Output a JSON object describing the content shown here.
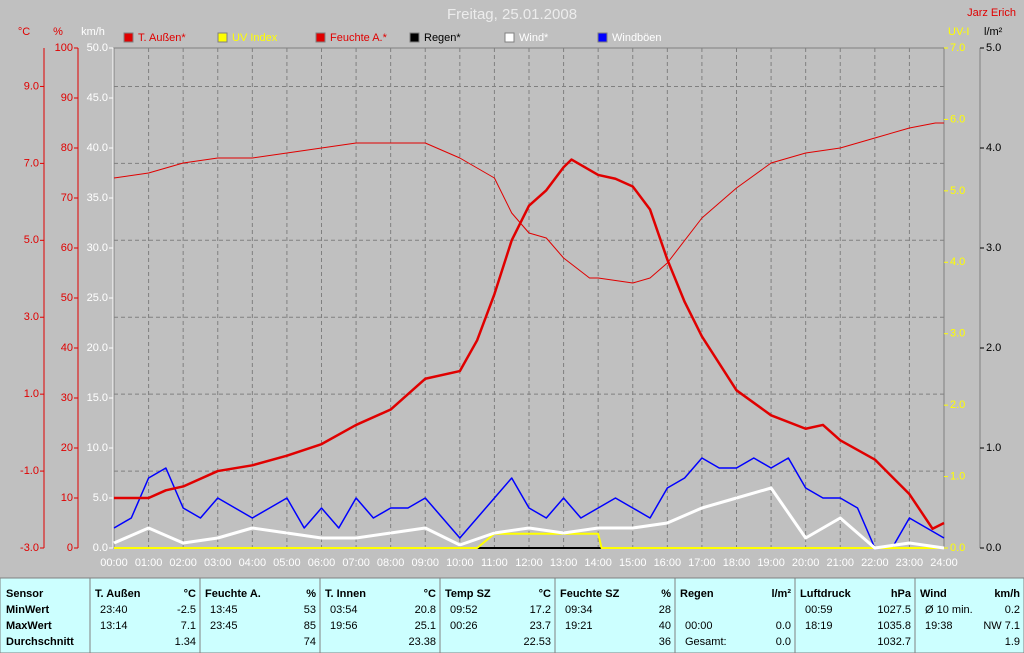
{
  "chart_data": {
    "type": "line",
    "title": "Freitag, 25.01.2008",
    "author": "Jarz Erich",
    "xlim": [
      0,
      24
    ],
    "xticks": [
      {
        "value": 0,
        "label": "00:00"
      },
      {
        "value": 1,
        "label": "01:00"
      },
      {
        "value": 2,
        "label": "02:00"
      },
      {
        "value": 3,
        "label": "03:00"
      },
      {
        "value": 4,
        "label": "04:00"
      },
      {
        "value": 5,
        "label": "05:00"
      },
      {
        "value": 6,
        "label": "06:00"
      },
      {
        "value": 7,
        "label": "07:00"
      },
      {
        "value": 8,
        "label": "08:00"
      },
      {
        "value": 9,
        "label": "09:00"
      },
      {
        "value": 10,
        "label": "10:00"
      },
      {
        "value": 11,
        "label": "11:00"
      },
      {
        "value": 12,
        "label": "12:00"
      },
      {
        "value": 13,
        "label": "13:00"
      },
      {
        "value": 14,
        "label": "14:00"
      },
      {
        "value": 15,
        "label": "15:00"
      },
      {
        "value": 16,
        "label": "16:00"
      },
      {
        "value": 17,
        "label": "17:00"
      },
      {
        "value": 18,
        "label": "18:00"
      },
      {
        "value": 19,
        "label": "19:00"
      },
      {
        "value": 20,
        "label": "20:00"
      },
      {
        "value": 21,
        "label": "21:00"
      },
      {
        "value": 22,
        "label": "22:00"
      },
      {
        "value": 23,
        "label": "23:00"
      },
      {
        "value": 24,
        "label": "24:00"
      }
    ],
    "grid": true,
    "axes": [
      {
        "unit": "°C",
        "color": "#e00000",
        "lim": [
          -3,
          10
        ],
        "ticks": [
          {
            "value": -3,
            "label": "-3.0"
          },
          {
            "value": -1,
            "label": "-1.0"
          },
          {
            "value": 1,
            "label": "1.0"
          },
          {
            "value": 3,
            "label": "3.0"
          },
          {
            "value": 5,
            "label": "5.0"
          },
          {
            "value": 7,
            "label": "7.0"
          },
          {
            "value": 9,
            "label": "9.0"
          }
        ]
      },
      {
        "unit": "%",
        "color": "#e00000",
        "lim": [
          0,
          100
        ],
        "ticks": [
          0,
          10,
          20,
          30,
          40,
          50,
          60,
          70,
          80,
          90,
          100
        ]
      },
      {
        "unit": "km/h",
        "color": "#ffffff",
        "lim": [
          0,
          50
        ],
        "ticks": [
          {
            "value": 0,
            "label": "0.0"
          },
          {
            "value": 5,
            "label": "5.0"
          },
          {
            "value": 10,
            "label": "10.0"
          },
          {
            "value": 15,
            "label": "15.0"
          },
          {
            "value": 20,
            "label": "20.0"
          },
          {
            "value": 25,
            "label": "25.0"
          },
          {
            "value": 30,
            "label": "30.0"
          },
          {
            "value": 35,
            "label": "35.0"
          },
          {
            "value": 40,
            "label": "40.0"
          },
          {
            "value": 45,
            "label": "45.0"
          },
          {
            "value": 50,
            "label": "50.0"
          }
        ]
      },
      {
        "unit": "UV-I",
        "color": "#ffff00",
        "lim": [
          0,
          7
        ],
        "ticks": [
          {
            "value": 0,
            "label": "0.0"
          },
          {
            "value": 1,
            "label": "1.0"
          },
          {
            "value": 2,
            "label": "2.0"
          },
          {
            "value": 3,
            "label": "3.0"
          },
          {
            "value": 4,
            "label": "4.0"
          },
          {
            "value": 5,
            "label": "5.0"
          },
          {
            "value": 6,
            "label": "6.0"
          },
          {
            "value": 7,
            "label": "7.0"
          }
        ]
      },
      {
        "unit": "l/m²",
        "color": "#000000",
        "lim": [
          0,
          5
        ],
        "ticks": [
          {
            "value": 0,
            "label": "0.0"
          },
          {
            "value": 1,
            "label": "1.0"
          },
          {
            "value": 2,
            "label": "2.0"
          },
          {
            "value": 3,
            "label": "3.0"
          },
          {
            "value": 4,
            "label": "4.0"
          },
          {
            "value": 5,
            "label": "5.0"
          }
        ]
      }
    ],
    "series": [
      {
        "name": "T. Außen*",
        "color": "#e00000",
        "axis": "°C",
        "x": [
          0,
          1,
          1.5,
          2,
          3,
          4,
          5,
          6,
          7,
          8,
          9,
          10,
          10.5,
          11,
          11.5,
          12,
          12.5,
          13,
          13.23,
          14,
          14.5,
          15,
          15.5,
          16,
          16.5,
          17,
          18,
          19,
          20,
          20.5,
          21,
          22,
          23,
          23.67,
          24
        ],
        "values": [
          -1.7,
          -1.7,
          -1.5,
          -1.4,
          -1.0,
          -0.85,
          -0.6,
          -0.3,
          0.2,
          0.6,
          1.4,
          1.6,
          2.4,
          3.6,
          5.0,
          5.9,
          6.3,
          6.9,
          7.1,
          6.7,
          6.6,
          6.4,
          5.8,
          4.5,
          3.4,
          2.5,
          1.1,
          0.45,
          0.1,
          0.2,
          -0.2,
          -0.7,
          -1.6,
          -2.5,
          -2.35
        ]
      },
      {
        "name": "UV Index",
        "color": "#ffff00",
        "axis": "UV-I",
        "x": [
          0,
          10.5,
          11,
          14,
          14.1,
          24
        ],
        "values": [
          0,
          0,
          0.2,
          0.2,
          0,
          0
        ]
      },
      {
        "name": "Feuchte A.*",
        "color": "#e00000",
        "axis": "%",
        "x": [
          0,
          1,
          2,
          3,
          4,
          5,
          6,
          7,
          8,
          9,
          10,
          11,
          11.5,
          12,
          12.5,
          13,
          13.75,
          14,
          15,
          15.5,
          16,
          17,
          18,
          19,
          20,
          21,
          22,
          23,
          23.75,
          24
        ],
        "values": [
          74,
          75,
          77,
          78,
          78,
          79,
          80,
          81,
          81,
          81,
          78,
          74,
          67,
          63,
          62,
          58,
          54,
          54,
          53,
          54,
          57,
          66,
          72,
          77,
          79,
          80,
          82,
          84,
          85,
          85
        ]
      },
      {
        "name": "Regen*",
        "color": "#000000",
        "axis": "l/m²",
        "x": [
          0,
          24
        ],
        "values": [
          0,
          0
        ]
      },
      {
        "name": "Wind*",
        "color": "#ffffff",
        "axis": "km/h",
        "x": [
          0,
          1,
          2,
          3,
          4,
          5,
          6,
          7,
          8,
          9,
          10,
          11,
          12,
          13,
          14,
          15,
          16,
          17,
          18,
          19,
          20,
          21,
          22,
          23,
          24
        ],
        "values": [
          0.5,
          2,
          0.5,
          1,
          2,
          1.5,
          1,
          1,
          1.5,
          2,
          0.3,
          1.5,
          2,
          1.5,
          2,
          2,
          2.5,
          4,
          5,
          6,
          1,
          3,
          0,
          0.5,
          0
        ]
      },
      {
        "name": "Windböen",
        "color": "#0000ff",
        "axis": "km/h",
        "x": [
          0,
          0.5,
          1,
          1.5,
          2,
          2.5,
          3,
          3.5,
          4,
          4.5,
          5,
          5.5,
          6,
          6.5,
          7,
          7.5,
          8,
          8.5,
          9,
          9.5,
          10,
          10.5,
          11,
          11.5,
          12,
          12.5,
          13,
          13.5,
          14,
          14.5,
          15,
          15.5,
          16,
          16.5,
          17,
          17.5,
          18,
          18.5,
          19,
          19.5,
          20,
          20.5,
          21,
          21.5,
          22,
          22.5,
          23,
          23.5,
          24
        ],
        "values": [
          2,
          3,
          7,
          8,
          4,
          3,
          5,
          4,
          3,
          4,
          5,
          2,
          4,
          2,
          5,
          3,
          4,
          4,
          5,
          3,
          1,
          3,
          5,
          7,
          4,
          3,
          5,
          3,
          4,
          5,
          4,
          3,
          6,
          7,
          9,
          8,
          8,
          9,
          8,
          9,
          6,
          5,
          5,
          4,
          0,
          0,
          3,
          2,
          1
        ]
      }
    ]
  },
  "table": {
    "row_labels": [
      "Sensor",
      "MinWert",
      "MaxWert",
      "Durchschnitt"
    ],
    "columns": [
      {
        "name": "T. Außen",
        "unit": "°C",
        "cells": [
          {
            "time": "23:40",
            "value": "-2.5"
          },
          {
            "time": "13:14",
            "value": "7.1"
          },
          {
            "value": "1.34"
          }
        ]
      },
      {
        "name": "Feuchte A.",
        "unit": "%",
        "cells": [
          {
            "time": "13:45",
            "value": "53"
          },
          {
            "time": "23:45",
            "value": "85"
          },
          {
            "value": "74"
          }
        ]
      },
      {
        "name": "T. Innen",
        "unit": "°C",
        "cells": [
          {
            "time": "03:54",
            "value": "20.8"
          },
          {
            "time": "19:56",
            "value": "25.1"
          },
          {
            "value": "23.38"
          }
        ]
      },
      {
        "name": "Temp SZ",
        "unit": "°C",
        "cells": [
          {
            "time": "09:52",
            "value": "17.2"
          },
          {
            "time": "00:26",
            "value": "23.7"
          },
          {
            "value": "22.53"
          }
        ]
      },
      {
        "name": "Feuchte SZ",
        "unit": "%",
        "cells": [
          {
            "time": "09:34",
            "value": "28"
          },
          {
            "time": "19:21",
            "value": "40"
          },
          {
            "value": "36"
          }
        ]
      },
      {
        "name": "Regen",
        "unit": "l/m²",
        "cells": [
          null,
          {
            "time": "00:00",
            "value": "0.0"
          },
          {
            "time": "Gesamt:",
            "value": "0.0"
          }
        ]
      },
      {
        "name": "Luftdruck",
        "unit": "hPa",
        "cells": [
          {
            "time": "00:59",
            "value": "1027.5"
          },
          {
            "time": "18:19",
            "value": "1035.8"
          },
          {
            "value": "1032.7"
          }
        ]
      },
      {
        "name": "Wind",
        "unit": "km/h",
        "cells": [
          {
            "time": "Ø 10 min.",
            "value": "0.2"
          },
          {
            "time": "19:38",
            "value": "NW 7.1"
          },
          {
            "value": "1.9"
          }
        ]
      }
    ]
  }
}
